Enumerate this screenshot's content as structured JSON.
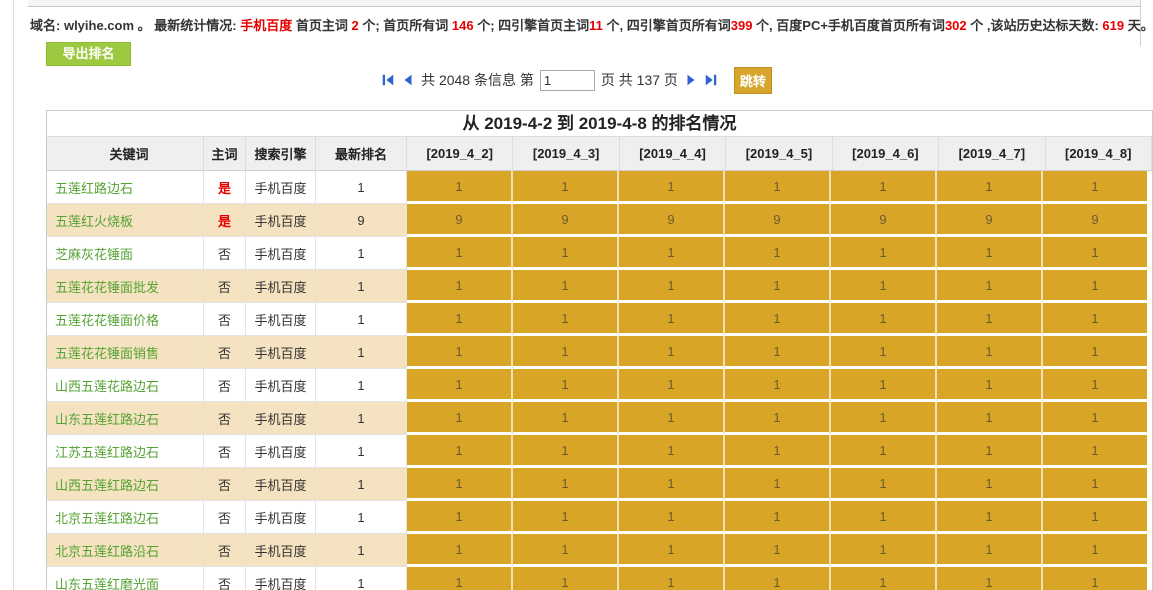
{
  "topbar": {
    "segments": [
      {
        "text": "域名: ",
        "style": ""
      },
      {
        "text": "wlyihe.com",
        "style": ""
      },
      {
        "text": " 。 ",
        "style": ""
      },
      {
        "text": "最新统计情况: ",
        "style": ""
      },
      {
        "text": "手机百度",
        "style": "red"
      },
      {
        "text": " 首页主词 ",
        "style": ""
      },
      {
        "text": "2",
        "style": "red"
      },
      {
        "text": " 个; 首页所有词 ",
        "style": ""
      },
      {
        "text": "146",
        "style": "red"
      },
      {
        "text": " 个; 四引擎首页主词",
        "style": ""
      },
      {
        "text": "11",
        "style": "red"
      },
      {
        "text": " 个, 四引擎首页所有词",
        "style": ""
      },
      {
        "text": "399",
        "style": "red"
      },
      {
        "text": " 个, 百度PC+手机百度首页所有词",
        "style": ""
      },
      {
        "text": "302",
        "style": "red"
      },
      {
        "text": " 个 ,该站历史达标天数: ",
        "style": ""
      },
      {
        "text": "619",
        "style": "red"
      },
      {
        "text": " 天。",
        "style": ""
      }
    ]
  },
  "toolbar": {
    "export_label": "导出排名"
  },
  "pagination": {
    "info_prefix": "共 2048 条信息 第",
    "page_input_value": "1",
    "info_suffix": "页 共 137 页",
    "jump_label": "跳转",
    "total_items": "2048",
    "current_page": "1",
    "total_pages": "137"
  },
  "table": {
    "title": "从 2019-4-2 到 2019-4-8 的排名情况",
    "columns": [
      "关键词",
      "主词",
      "搜索引擎",
      "最新排名",
      "[2019_4_2]",
      "[2019_4_3]",
      "[2019_4_4]",
      "[2019_4_5]",
      "[2019_4_6]",
      "[2019_4_7]",
      "[2019_4_8]"
    ],
    "rows": [
      {
        "keyword": "五莲红路边石",
        "is_main": "是",
        "engine": "手机百度",
        "latest_rank": "1",
        "ranks": [
          "1",
          "1",
          "1",
          "1",
          "1",
          "1",
          "1"
        ]
      },
      {
        "keyword": "五莲红火烧板",
        "is_main": "是",
        "engine": "手机百度",
        "latest_rank": "9",
        "ranks": [
          "9",
          "9",
          "9",
          "9",
          "9",
          "9",
          "9"
        ]
      },
      {
        "keyword": "芝麻灰花锤面",
        "is_main": "否",
        "engine": "手机百度",
        "latest_rank": "1",
        "ranks": [
          "1",
          "1",
          "1",
          "1",
          "1",
          "1",
          "1"
        ]
      },
      {
        "keyword": "五莲花花锤面批发",
        "is_main": "否",
        "engine": "手机百度",
        "latest_rank": "1",
        "ranks": [
          "1",
          "1",
          "1",
          "1",
          "1",
          "1",
          "1"
        ]
      },
      {
        "keyword": "五莲花花锤面价格",
        "is_main": "否",
        "engine": "手机百度",
        "latest_rank": "1",
        "ranks": [
          "1",
          "1",
          "1",
          "1",
          "1",
          "1",
          "1"
        ]
      },
      {
        "keyword": "五莲花花锤面销售",
        "is_main": "否",
        "engine": "手机百度",
        "latest_rank": "1",
        "ranks": [
          "1",
          "1",
          "1",
          "1",
          "1",
          "1",
          "1"
        ]
      },
      {
        "keyword": "山西五莲花路边石",
        "is_main": "否",
        "engine": "手机百度",
        "latest_rank": "1",
        "ranks": [
          "1",
          "1",
          "1",
          "1",
          "1",
          "1",
          "1"
        ]
      },
      {
        "keyword": "山东五莲红路边石",
        "is_main": "否",
        "engine": "手机百度",
        "latest_rank": "1",
        "ranks": [
          "1",
          "1",
          "1",
          "1",
          "1",
          "1",
          "1"
        ]
      },
      {
        "keyword": "江苏五莲红路边石",
        "is_main": "否",
        "engine": "手机百度",
        "latest_rank": "1",
        "ranks": [
          "1",
          "1",
          "1",
          "1",
          "1",
          "1",
          "1"
        ]
      },
      {
        "keyword": "山西五莲红路边石",
        "is_main": "否",
        "engine": "手机百度",
        "latest_rank": "1",
        "ranks": [
          "1",
          "1",
          "1",
          "1",
          "1",
          "1",
          "1"
        ]
      },
      {
        "keyword": "北京五莲红路边石",
        "is_main": "否",
        "engine": "手机百度",
        "latest_rank": "1",
        "ranks": [
          "1",
          "1",
          "1",
          "1",
          "1",
          "1",
          "1"
        ]
      },
      {
        "keyword": "北京五莲红路沿石",
        "is_main": "否",
        "engine": "手机百度",
        "latest_rank": "1",
        "ranks": [
          "1",
          "1",
          "1",
          "1",
          "1",
          "1",
          "1"
        ]
      },
      {
        "keyword": "山东五莲红磨光面",
        "is_main": "否",
        "engine": "手机百度",
        "latest_rank": "1",
        "ranks": [
          "1",
          "1",
          "1",
          "1",
          "1",
          "1",
          "1"
        ]
      }
    ]
  },
  "colors": {
    "rank_cell_gold": "#d9a526",
    "alt_row_beige": "#f5e2c0",
    "keyword_green": "#55a335",
    "highlight_red": "#e60000",
    "pager_icon_blue": "#2e64ce",
    "export_button_green": "#9cc93f",
    "jump_button_gold": "#d7a52b"
  }
}
